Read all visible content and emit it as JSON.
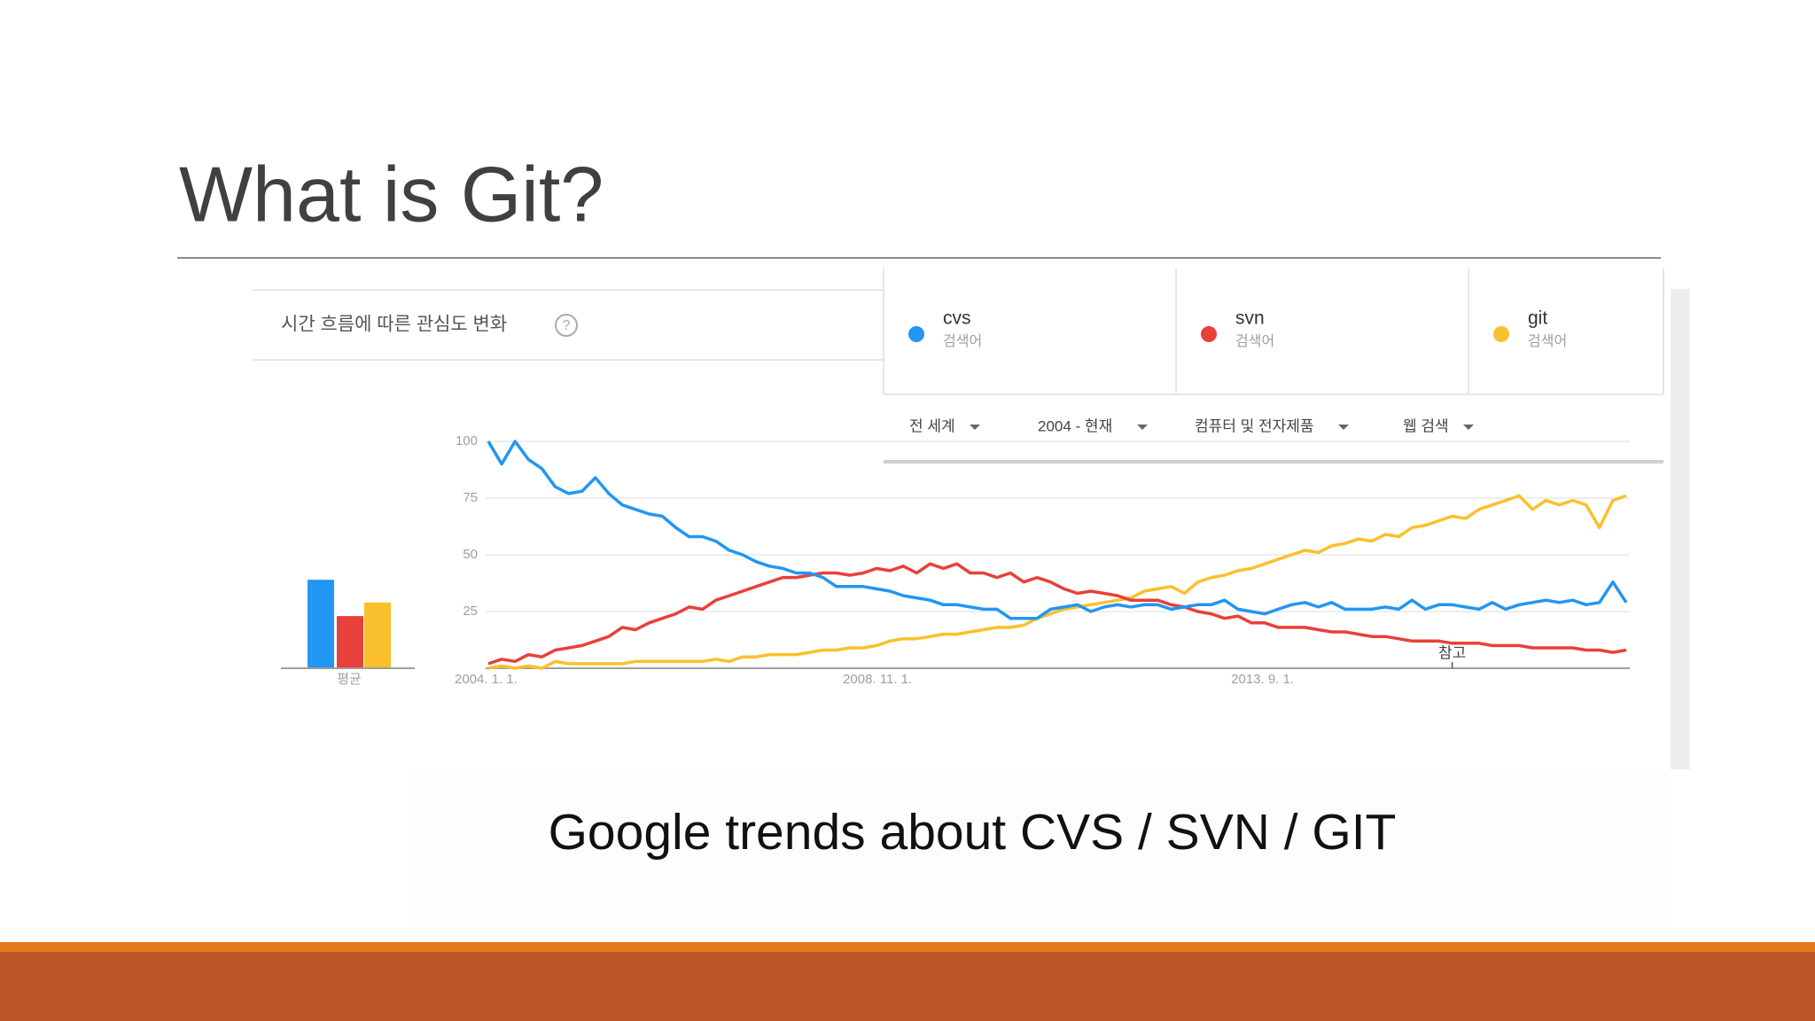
{
  "slide": {
    "title": "What is Git?",
    "caption": "Google trends about CVS / SVN / GIT"
  },
  "trends": {
    "header": "시간 흐름에 따른 관심도 변화",
    "filters": [
      "전 세계",
      "2004 - 현재",
      "컴퓨터 및 전자제품",
      "웹 검색"
    ]
  },
  "chart_data": {
    "type": "line",
    "categories": [
      "2004. 1. 1.",
      null,
      null,
      null,
      null,
      null,
      null,
      null,
      null,
      null,
      null,
      null,
      null,
      null,
      null,
      null,
      null,
      null,
      null,
      null,
      null,
      null,
      null,
      null,
      null,
      null,
      null,
      null,
      null,
      "2008. 11. 1.",
      null,
      null,
      null,
      null,
      null,
      null,
      null,
      null,
      null,
      null,
      null,
      null,
      null,
      null,
      null,
      null,
      null,
      null,
      null,
      null,
      null,
      null,
      null,
      null,
      null,
      null,
      null,
      null,
      "2013. 9. 1.",
      null,
      null,
      null,
      null,
      null,
      null,
      null,
      null,
      null,
      null,
      null,
      null,
      null,
      null,
      null,
      null,
      null,
      null,
      null,
      null,
      null,
      null,
      null,
      null,
      null,
      null,
      null
    ],
    "series": [
      {
        "name": "cvs",
        "subtitle": "검색어",
        "color": "#2196f3",
        "values": [
          100,
          90,
          100,
          92,
          88,
          80,
          77,
          78,
          84,
          77,
          72,
          70,
          68,
          67,
          62,
          58,
          58,
          56,
          52,
          50,
          47,
          45,
          44,
          42,
          42,
          40,
          36,
          36,
          36,
          35,
          34,
          32,
          31,
          30,
          28,
          28,
          27,
          26,
          26,
          22,
          22,
          22,
          26,
          27,
          28,
          25,
          27,
          28,
          27,
          28,
          28,
          26,
          27,
          28,
          28,
          30,
          26,
          25,
          24,
          26,
          28,
          29,
          27,
          29,
          26,
          26,
          26,
          27,
          26,
          30,
          26,
          28,
          28,
          27,
          26,
          29,
          26,
          28,
          29,
          30,
          29,
          30,
          28,
          29,
          38,
          29
        ]
      },
      {
        "name": "svn",
        "subtitle": "검색어",
        "color": "#e8403a",
        "values": [
          2,
          4,
          3,
          6,
          5,
          8,
          9,
          10,
          12,
          14,
          18,
          17,
          20,
          22,
          24,
          27,
          26,
          30,
          32,
          34,
          36,
          38,
          40,
          40,
          41,
          42,
          42,
          41,
          42,
          44,
          43,
          45,
          42,
          46,
          44,
          46,
          42,
          42,
          40,
          42,
          38,
          40,
          38,
          35,
          33,
          34,
          33,
          32,
          30,
          30,
          30,
          28,
          27,
          25,
          24,
          22,
          23,
          20,
          20,
          18,
          18,
          18,
          17,
          16,
          16,
          15,
          14,
          14,
          13,
          12,
          12,
          12,
          11,
          11,
          11,
          10,
          10,
          10,
          9,
          9,
          9,
          9,
          8,
          8,
          7,
          8
        ]
      },
      {
        "name": "git",
        "subtitle": "검색어",
        "color": "#fbc02d",
        "values": [
          0,
          1,
          0,
          1,
          0,
          3,
          2,
          2,
          2,
          2,
          2,
          3,
          3,
          3,
          3,
          3,
          3,
          4,
          3,
          5,
          5,
          6,
          6,
          6,
          7,
          8,
          8,
          9,
          9,
          10,
          12,
          13,
          13,
          14,
          15,
          15,
          16,
          17,
          18,
          18,
          19,
          22,
          24,
          26,
          27,
          28,
          29,
          30,
          31,
          34,
          35,
          36,
          33,
          38,
          40,
          41,
          43,
          44,
          46,
          48,
          50,
          52,
          51,
          54,
          55,
          57,
          56,
          59,
          58,
          62,
          63,
          65,
          67,
          66,
          70,
          72,
          74,
          76,
          70,
          74,
          72,
          74,
          72,
          62,
          74,
          76
        ]
      }
    ],
    "ylim": [
      0,
      100
    ],
    "yticks": [
      25,
      50,
      75,
      100
    ],
    "grid": true,
    "annotation": "참고",
    "average": {
      "label": "평균",
      "values": [
        39,
        23,
        29
      ]
    }
  }
}
